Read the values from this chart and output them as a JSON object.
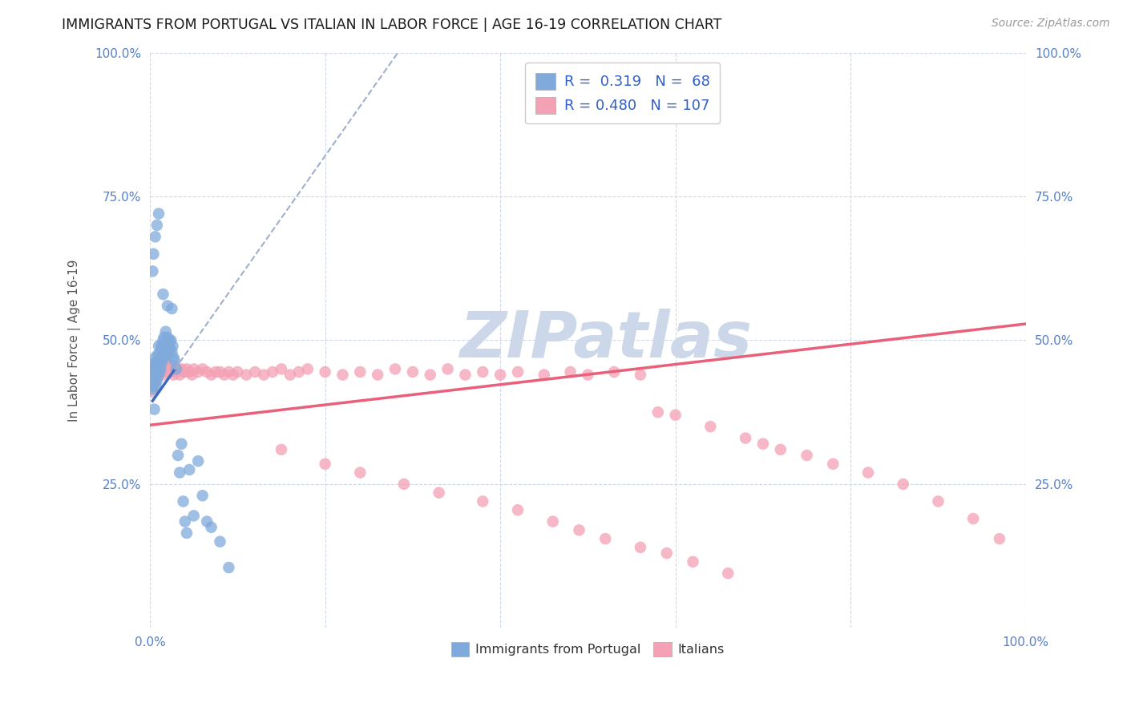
{
  "title": "IMMIGRANTS FROM PORTUGAL VS ITALIAN IN LABOR FORCE | AGE 16-19 CORRELATION CHART",
  "source": "Source: ZipAtlas.com",
  "ylabel": "In Labor Force | Age 16-19",
  "xlim": [
    0.0,
    1.0
  ],
  "ylim": [
    0.0,
    1.0
  ],
  "xticks": [
    0.0,
    0.2,
    0.4,
    0.6,
    0.8,
    1.0
  ],
  "yticks": [
    0.0,
    0.25,
    0.5,
    0.75,
    1.0
  ],
  "xtick_labels_bottom": [
    "0.0%",
    "",
    "",
    "",
    "",
    "100.0%"
  ],
  "ytick_labels_left": [
    "",
    "25.0%",
    "50.0%",
    "75.0%",
    "100.0%"
  ],
  "ytick_labels_right": [
    "",
    "25.0%",
    "50.0%",
    "75.0%",
    "100.0%"
  ],
  "portugal_R": 0.319,
  "portugal_N": 68,
  "italian_R": 0.48,
  "italian_N": 107,
  "portugal_color": "#7faadb",
  "italian_color": "#f4a0b5",
  "portugal_line_color": "#3d6bbf",
  "italian_line_color": "#e8607a",
  "dashed_line_color": "#a0b0cc",
  "watermark_color": "#ccd8ea",
  "background_color": "#ffffff",
  "grid_color": "#d0d8e8",
  "portugal_scatter_x": [
    0.003,
    0.003,
    0.003,
    0.004,
    0.004,
    0.005,
    0.005,
    0.005,
    0.006,
    0.006,
    0.007,
    0.007,
    0.008,
    0.008,
    0.009,
    0.009,
    0.01,
    0.01,
    0.01,
    0.011,
    0.011,
    0.012,
    0.012,
    0.013,
    0.013,
    0.014,
    0.014,
    0.015,
    0.015,
    0.016,
    0.016,
    0.017,
    0.018,
    0.018,
    0.019,
    0.02,
    0.02,
    0.021,
    0.022,
    0.023,
    0.024,
    0.025,
    0.026,
    0.027,
    0.028,
    0.03,
    0.032,
    0.034,
    0.036,
    0.038,
    0.04,
    0.042,
    0.045,
    0.05,
    0.055,
    0.06,
    0.065,
    0.07,
    0.08,
    0.09,
    0.003,
    0.004,
    0.006,
    0.008,
    0.01,
    0.015,
    0.02,
    0.025
  ],
  "portugal_scatter_y": [
    0.415,
    0.435,
    0.445,
    0.42,
    0.45,
    0.38,
    0.43,
    0.46,
    0.44,
    0.47,
    0.42,
    0.45,
    0.43,
    0.46,
    0.44,
    0.475,
    0.44,
    0.46,
    0.49,
    0.445,
    0.47,
    0.45,
    0.48,
    0.46,
    0.49,
    0.465,
    0.49,
    0.47,
    0.5,
    0.475,
    0.505,
    0.48,
    0.49,
    0.515,
    0.495,
    0.475,
    0.505,
    0.49,
    0.5,
    0.485,
    0.5,
    0.48,
    0.49,
    0.47,
    0.465,
    0.45,
    0.3,
    0.27,
    0.32,
    0.22,
    0.185,
    0.165,
    0.275,
    0.195,
    0.29,
    0.23,
    0.185,
    0.175,
    0.15,
    0.105,
    0.62,
    0.65,
    0.68,
    0.7,
    0.72,
    0.58,
    0.56,
    0.555
  ],
  "italian_scatter_x": [
    0.003,
    0.003,
    0.003,
    0.004,
    0.004,
    0.005,
    0.005,
    0.006,
    0.006,
    0.007,
    0.007,
    0.008,
    0.008,
    0.009,
    0.01,
    0.01,
    0.011,
    0.012,
    0.013,
    0.014,
    0.015,
    0.015,
    0.016,
    0.017,
    0.018,
    0.019,
    0.02,
    0.021,
    0.022,
    0.023,
    0.024,
    0.025,
    0.026,
    0.027,
    0.028,
    0.03,
    0.032,
    0.034,
    0.036,
    0.038,
    0.04,
    0.042,
    0.045,
    0.048,
    0.05,
    0.055,
    0.06,
    0.065,
    0.07,
    0.075,
    0.08,
    0.085,
    0.09,
    0.095,
    0.1,
    0.11,
    0.12,
    0.13,
    0.14,
    0.15,
    0.16,
    0.17,
    0.18,
    0.2,
    0.22,
    0.24,
    0.26,
    0.28,
    0.3,
    0.32,
    0.34,
    0.36,
    0.38,
    0.4,
    0.42,
    0.45,
    0.48,
    0.5,
    0.53,
    0.56,
    0.58,
    0.6,
    0.64,
    0.68,
    0.7,
    0.72,
    0.75,
    0.78,
    0.82,
    0.86,
    0.9,
    0.94,
    0.97,
    0.15,
    0.2,
    0.24,
    0.29,
    0.33,
    0.38,
    0.42,
    0.46,
    0.49,
    0.52,
    0.56,
    0.59,
    0.62,
    0.66
  ],
  "italian_scatter_y": [
    0.41,
    0.43,
    0.45,
    0.42,
    0.44,
    0.43,
    0.455,
    0.44,
    0.46,
    0.43,
    0.45,
    0.435,
    0.46,
    0.445,
    0.44,
    0.465,
    0.45,
    0.455,
    0.46,
    0.445,
    0.44,
    0.46,
    0.45,
    0.455,
    0.445,
    0.46,
    0.45,
    0.455,
    0.445,
    0.45,
    0.455,
    0.445,
    0.45,
    0.44,
    0.455,
    0.445,
    0.45,
    0.44,
    0.45,
    0.445,
    0.445,
    0.45,
    0.445,
    0.44,
    0.45,
    0.445,
    0.45,
    0.445,
    0.44,
    0.445,
    0.445,
    0.44,
    0.445,
    0.44,
    0.445,
    0.44,
    0.445,
    0.44,
    0.445,
    0.45,
    0.44,
    0.445,
    0.45,
    0.445,
    0.44,
    0.445,
    0.44,
    0.45,
    0.445,
    0.44,
    0.45,
    0.44,
    0.445,
    0.44,
    0.445,
    0.44,
    0.445,
    0.44,
    0.445,
    0.44,
    0.375,
    0.37,
    0.35,
    0.33,
    0.32,
    0.31,
    0.3,
    0.285,
    0.27,
    0.25,
    0.22,
    0.19,
    0.155,
    0.31,
    0.285,
    0.27,
    0.25,
    0.235,
    0.22,
    0.205,
    0.185,
    0.17,
    0.155,
    0.14,
    0.13,
    0.115,
    0.095
  ]
}
